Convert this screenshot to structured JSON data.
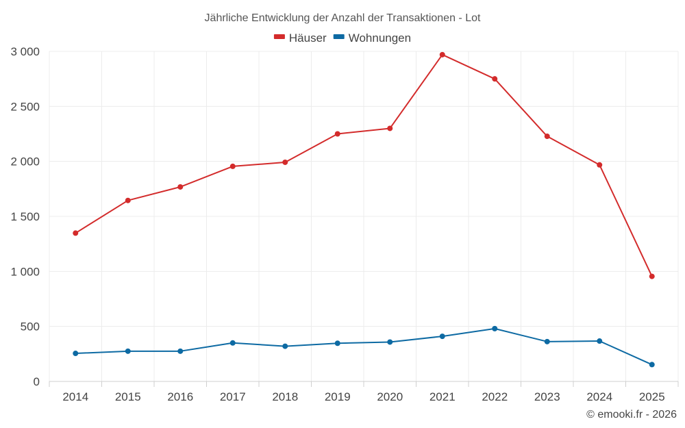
{
  "chart_data": {
    "type": "line",
    "title": "Jährliche Entwicklung der Anzahl der Transaktionen - Lot",
    "categories": [
      "2014",
      "2015",
      "2016",
      "2017",
      "2018",
      "2019",
      "2020",
      "2021",
      "2022",
      "2023",
      "2024",
      "2025"
    ],
    "series": [
      {
        "name": "Häuser",
        "color": "#d32b2b",
        "values": [
          1348,
          1645,
          1768,
          1955,
          1992,
          2250,
          2300,
          2970,
          2750,
          2228,
          1968,
          955
        ]
      },
      {
        "name": "Wohnungen",
        "color": "#0d6aa3",
        "values": [
          255,
          275,
          275,
          350,
          320,
          347,
          358,
          410,
          480,
          362,
          367,
          153
        ]
      }
    ],
    "yticks": [
      0,
      500,
      1000,
      1500,
      2000,
      2500,
      3000
    ],
    "ytick_labels": [
      "0",
      "500",
      "1 000",
      "1 500",
      "2 000",
      "2 500",
      "3 000"
    ],
    "ylim": [
      0,
      3000
    ],
    "grid": true,
    "legend_position": "top-center"
  },
  "credit": "© emooki.fr - 2026"
}
